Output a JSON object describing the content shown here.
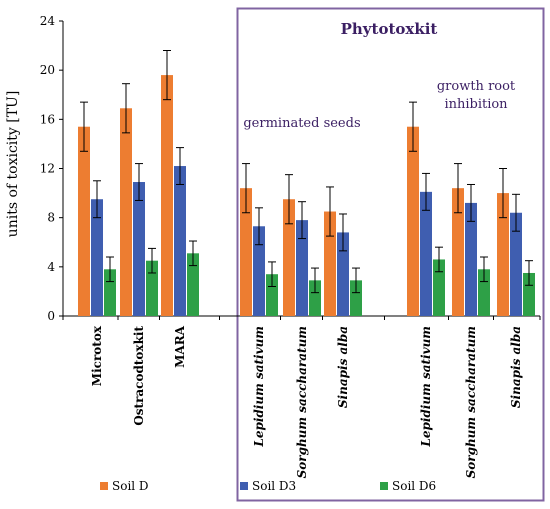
{
  "chart_data": {
    "type": "bar",
    "ylabel": "units of toxicity [TU]",
    "ylim": [
      0,
      24
    ],
    "yticks": [
      0,
      4,
      8,
      12,
      16,
      20,
      24
    ],
    "categories": [
      "Microtox",
      "Ostracodtoxkit",
      "MARA",
      "Lepidium sativum",
      "Sorghum saccharatum",
      "Sinapis alba",
      "Lepidium sativum",
      "Sorghum saccharatum",
      "Sinapis alba"
    ],
    "series": [
      {
        "name": "Soil D",
        "color": "#ed7d31",
        "values": [
          15.4,
          16.9,
          19.6,
          10.4,
          9.5,
          8.5,
          15.4,
          10.4,
          10.0
        ],
        "errors": [
          2.0,
          2.0,
          2.0,
          2.0,
          2.0,
          2.0,
          2.0,
          2.0,
          2.0
        ]
      },
      {
        "name": "Soil D3",
        "color": "#3f5eb0",
        "values": [
          9.5,
          10.9,
          12.2,
          7.3,
          7.8,
          6.8,
          10.1,
          9.2,
          8.4
        ],
        "errors": [
          1.5,
          1.5,
          1.5,
          1.5,
          1.5,
          1.5,
          1.5,
          1.5,
          1.5
        ]
      },
      {
        "name": "Soil D6",
        "color": "#2ea047",
        "values": [
          3.8,
          4.5,
          5.1,
          3.4,
          2.9,
          2.9,
          4.6,
          3.8,
          3.5
        ],
        "errors": [
          1.0,
          1.0,
          1.0,
          1.0,
          1.0,
          1.0,
          1.0,
          1.0,
          1.0
        ]
      }
    ],
    "annotations": {
      "panel_title": "Phytotoxkit",
      "group1_label": "germinated seeds",
      "group2_label_line1": "growth root",
      "group2_label_line2": "inhibition"
    },
    "grid": false,
    "legend_position": "bottom"
  }
}
